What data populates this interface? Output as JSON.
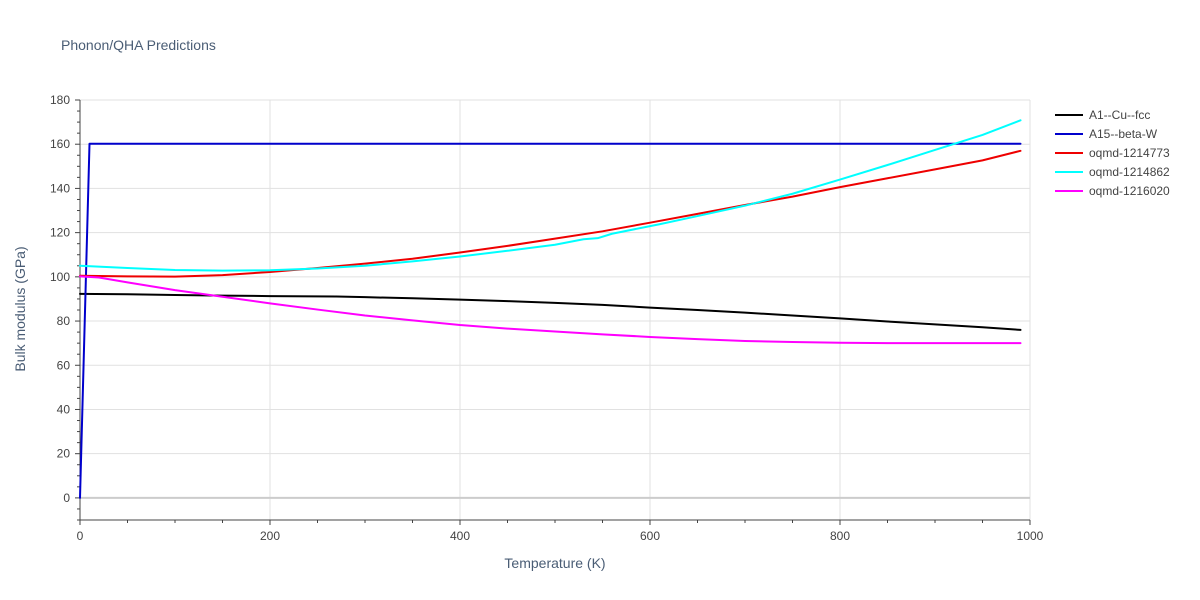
{
  "chart_data": {
    "type": "line",
    "title": "Phonon/QHA Predictions",
    "xlabel": "Temperature (K)",
    "ylabel": "Bulk modulus (GPa)",
    "xlim": [
      0,
      1000
    ],
    "ylim": [
      -10,
      180
    ],
    "x_ticks": [
      "0",
      "200",
      "400",
      "600",
      "800",
      "1000"
    ],
    "y_ticks": [
      "0",
      "20",
      "40",
      "60",
      "80",
      "100",
      "120",
      "140",
      "160",
      "180"
    ],
    "grid": true,
    "legend_position": "right",
    "series": [
      {
        "name": "A1--Cu--fcc",
        "color": "#000000",
        "points": [
          [
            0,
            92.3
          ],
          [
            50,
            92.1
          ],
          [
            100,
            91.8
          ],
          [
            150,
            91.5
          ],
          [
            200,
            91.3
          ],
          [
            270,
            91.1
          ],
          [
            300,
            90.8
          ],
          [
            350,
            90.3
          ],
          [
            400,
            89.7
          ],
          [
            450,
            89.0
          ],
          [
            500,
            88.2
          ],
          [
            550,
            87.3
          ],
          [
            600,
            86.1
          ],
          [
            650,
            85.0
          ],
          [
            700,
            83.8
          ],
          [
            750,
            82.5
          ],
          [
            800,
            81.2
          ],
          [
            850,
            79.8
          ],
          [
            900,
            78.5
          ],
          [
            950,
            77.2
          ],
          [
            990,
            76.0
          ]
        ]
      },
      {
        "name": "A15--beta-W",
        "color": "#0000cc",
        "points": [
          [
            0,
            0
          ],
          [
            10,
            160.2
          ],
          [
            100,
            160.2
          ],
          [
            200,
            160.2
          ],
          [
            300,
            160.2
          ],
          [
            400,
            160.2
          ],
          [
            500,
            160.2
          ],
          [
            600,
            160.2
          ],
          [
            700,
            160.2
          ],
          [
            800,
            160.2
          ],
          [
            900,
            160.2
          ],
          [
            990,
            160.2
          ]
        ]
      },
      {
        "name": "oqmd-1214773",
        "color": "#ee0000",
        "points": [
          [
            0,
            100.5
          ],
          [
            50,
            100.2
          ],
          [
            100,
            100.1
          ],
          [
            150,
            100.8
          ],
          [
            200,
            102.2
          ],
          [
            250,
            104.0
          ],
          [
            300,
            106.0
          ],
          [
            350,
            108.2
          ],
          [
            400,
            111.0
          ],
          [
            450,
            114.0
          ],
          [
            500,
            117.3
          ],
          [
            550,
            120.6
          ],
          [
            600,
            124.5
          ],
          [
            650,
            128.5
          ],
          [
            700,
            132.5
          ],
          [
            750,
            136.3
          ],
          [
            800,
            140.6
          ],
          [
            850,
            144.6
          ],
          [
            900,
            148.6
          ],
          [
            950,
            152.7
          ],
          [
            990,
            157.0
          ]
        ]
      },
      {
        "name": "oqmd-1214862",
        "color": "#00ffff",
        "points": [
          [
            0,
            105.0
          ],
          [
            50,
            104.0
          ],
          [
            100,
            103.1
          ],
          [
            150,
            102.8
          ],
          [
            200,
            103.0
          ],
          [
            250,
            103.8
          ],
          [
            300,
            105.0
          ],
          [
            350,
            107.0
          ],
          [
            400,
            109.2
          ],
          [
            450,
            111.8
          ],
          [
            500,
            114.5
          ],
          [
            530,
            117.0
          ],
          [
            545,
            117.5
          ],
          [
            560,
            119.5
          ],
          [
            610,
            123.8
          ],
          [
            650,
            127.5
          ],
          [
            700,
            132.2
          ],
          [
            750,
            137.6
          ],
          [
            800,
            144.0
          ],
          [
            850,
            150.6
          ],
          [
            900,
            157.4
          ],
          [
            950,
            164.2
          ],
          [
            990,
            170.8
          ]
        ]
      },
      {
        "name": "oqmd-1216020",
        "color": "#ff00ff",
        "points": [
          [
            0,
            100.2
          ],
          [
            20,
            99.7
          ],
          [
            50,
            97.5
          ],
          [
            100,
            94.0
          ],
          [
            150,
            91.0
          ],
          [
            200,
            88.0
          ],
          [
            250,
            85.2
          ],
          [
            300,
            82.5
          ],
          [
            350,
            80.3
          ],
          [
            400,
            78.2
          ],
          [
            450,
            76.6
          ],
          [
            500,
            75.3
          ],
          [
            550,
            74.0
          ],
          [
            600,
            72.8
          ],
          [
            650,
            71.8
          ],
          [
            700,
            71.0
          ],
          [
            750,
            70.5
          ],
          [
            800,
            70.2
          ],
          [
            850,
            70.0
          ],
          [
            900,
            70.0
          ],
          [
            950,
            70.0
          ],
          [
            990,
            70.0
          ]
        ]
      }
    ]
  }
}
